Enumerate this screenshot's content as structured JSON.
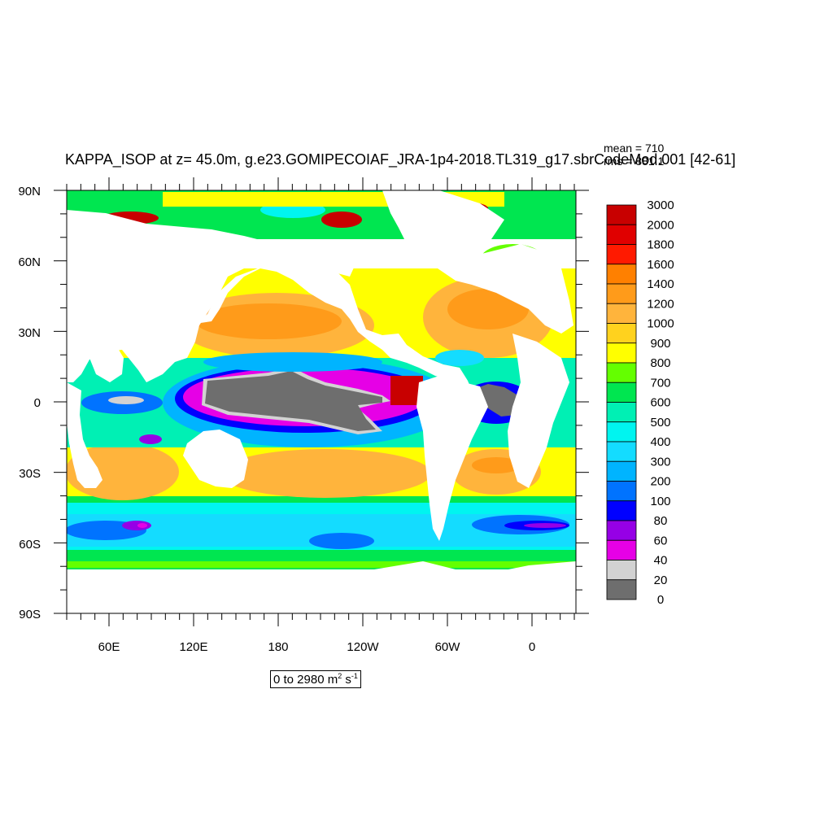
{
  "title": "KAPPA_ISOP at z=  45.0m, g.e23.GOMIPECOIAF_JRA-1p4-2018.TL319_g17.sbrCodeMod.001 [42-61]",
  "stats": {
    "mean": "mean = 710",
    "rms": "rms = 881.1"
  },
  "range_label": {
    "prefix": "0 to 2980 m",
    "mid": " s",
    "sup1": "2",
    "sup2": "-1"
  },
  "axes": {
    "lat_labels": [
      "90N",
      "60N",
      "30N",
      "0",
      "30S",
      "60S",
      "90S"
    ],
    "lon_labels": [
      "60E",
      "120E",
      "180",
      "120W",
      "60W",
      "0"
    ]
  },
  "colorbar": {
    "labels": [
      "3000",
      "2000",
      "1800",
      "1600",
      "1400",
      "1200",
      "1000",
      "900",
      "800",
      "700",
      "600",
      "500",
      "400",
      "300",
      "200",
      "100",
      "80",
      "60",
      "40",
      "20",
      "0"
    ],
    "colors": [
      "#c80000",
      "#e00000",
      "#ff1a00",
      "#ff8000",
      "#ff9b1a",
      "#ffb43c",
      "#ffd21e",
      "#ffff00",
      "#64ff00",
      "#00e650",
      "#00f0b4",
      "#00f5f0",
      "#14dcff",
      "#00b4ff",
      "#0073ff",
      "#0000ff",
      "#9600e6",
      "#e600e6",
      "#d2d2d2",
      "#6e6e6e"
    ]
  },
  "map_palette": {
    "land": "#ffffff",
    "zero": "#6e6e6e",
    "low_grey": "#d2d2d2",
    "magenta": "#e600e6",
    "purple": "#9600e6",
    "blue": "#0000ff",
    "b100": "#0073ff",
    "b200": "#00b4ff",
    "b300": "#14dcff",
    "cyan": "#00f5f0",
    "aqua": "#00f0b4",
    "green": "#00e650",
    "lime": "#64ff00",
    "yellow": "#ffff00",
    "gold": "#ffd21e",
    "orange_light": "#ffb43c",
    "orange": "#ff9b1a",
    "orange_dark": "#ff8000",
    "red": "#ff1a00",
    "dark_red": "#c80000"
  }
}
